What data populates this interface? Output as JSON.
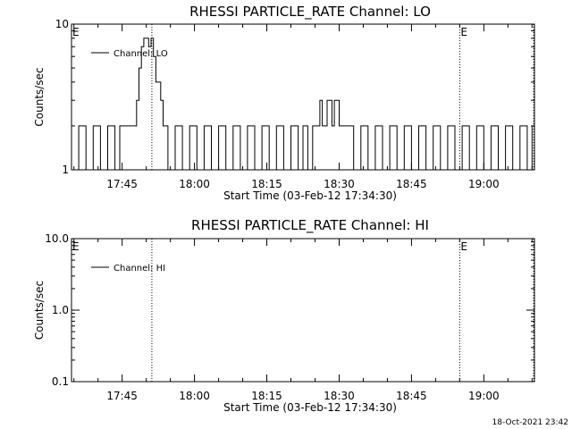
{
  "footer": {
    "timestamp": "18-Oct-2021 23:42"
  },
  "chart_data": [
    {
      "type": "line",
      "title": "RHESSI PARTICLE_RATE Channel: LO",
      "xlabel": "Start Time (03-Feb-12 17:34:30)",
      "ylabel": "Counts/sec",
      "yscale": "log",
      "ylim": [
        1,
        10
      ],
      "y_tick_labels": [
        "1",
        "10"
      ],
      "x_range": [
        "17:34:30",
        "19:10:30"
      ],
      "x_tick_labels": [
        "17:45",
        "18:00",
        "18:15",
        "18:30",
        "18:45",
        "19:00"
      ],
      "legend": "top-left",
      "grid": false,
      "markers": [
        {
          "time": "17:51:10",
          "label": ""
        },
        {
          "time": "18:55:00",
          "label": "E"
        },
        {
          "time": "19:10:20",
          "label": ""
        }
      ],
      "edge_label": "E",
      "series": [
        {
          "name": "Channel: LO",
          "x": [
            "17:34:30",
            "17:36:00",
            "17:37:30",
            "17:39:00",
            "17:40:30",
            "17:42:00",
            "17:43:30",
            "17:44:30",
            "17:45:30",
            "17:46:00",
            "17:47:00",
            "17:48:00",
            "17:48:30",
            "17:49:00",
            "17:49:30",
            "17:50:00",
            "17:50:30",
            "17:51:00",
            "17:51:30",
            "17:52:00",
            "17:52:30",
            "17:53:00",
            "17:53:30",
            "17:54:30",
            "17:56:00",
            "17:57:30",
            "17:59:00",
            "18:00:30",
            "18:02:00",
            "18:03:30",
            "18:05:00",
            "18:06:30",
            "18:08:00",
            "18:09:30",
            "18:11:00",
            "18:12:30",
            "18:14:00",
            "18:15:30",
            "18:17:00",
            "18:18:30",
            "18:20:00",
            "18:21:30",
            "18:22:30",
            "18:23:30",
            "18:24:30",
            "18:25:30",
            "18:26:00",
            "18:26:30",
            "18:27:00",
            "18:27:30",
            "18:28:00",
            "18:28:30",
            "18:29:00",
            "18:30:00",
            "18:31:30",
            "18:33:00",
            "18:34:30",
            "18:36:00",
            "18:37:30",
            "18:39:00",
            "18:40:30",
            "18:42:00",
            "18:43:30",
            "18:45:00",
            "18:46:30",
            "18:48:00",
            "18:49:30",
            "18:51:00",
            "18:52:30",
            "18:54:00",
            "18:55:30",
            "18:57:00",
            "18:58:30",
            "19:00:00",
            "19:01:30",
            "19:03:00",
            "19:04:30",
            "19:06:00",
            "19:07:30",
            "19:09:00",
            "19:10:00"
          ],
          "y": [
            1,
            2,
            1,
            2,
            1,
            2,
            1,
            2,
            2,
            2,
            2,
            3,
            5,
            7,
            8,
            8,
            7,
            8,
            6,
            4,
            4,
            3,
            2,
            1,
            2,
            1,
            2,
            1,
            2,
            1,
            2,
            1,
            2,
            1,
            2,
            1,
            2,
            1,
            2,
            1,
            2,
            1,
            2,
            1,
            2,
            2,
            3,
            2,
            2,
            3,
            3,
            2,
            3,
            2,
            2,
            1,
            2,
            1,
            2,
            1,
            2,
            1,
            2,
            1,
            2,
            1,
            2,
            1,
            2,
            1,
            2,
            1,
            2,
            1,
            2,
            1,
            2,
            1,
            2,
            1,
            2
          ]
        }
      ]
    },
    {
      "type": "line",
      "title": "RHESSI PARTICLE_RATE Channel: HI",
      "xlabel": "Start Time (03-Feb-12 17:34:30)",
      "ylabel": "Counts/sec",
      "yscale": "log",
      "ylim": [
        0.1,
        10.0
      ],
      "y_tick_labels": [
        "0.1",
        "1.0",
        "10.0"
      ],
      "x_range": [
        "17:34:30",
        "19:10:30"
      ],
      "x_tick_labels": [
        "17:45",
        "18:00",
        "18:15",
        "18:30",
        "18:45",
        "19:00"
      ],
      "legend": "top-left",
      "grid": false,
      "markers": [
        {
          "time": "17:51:10",
          "label": ""
        },
        {
          "time": "18:55:00",
          "label": "E"
        },
        {
          "time": "19:10:20",
          "label": ""
        }
      ],
      "edge_label": "E",
      "series": [
        {
          "name": "Channel: HI",
          "x": [],
          "y": []
        }
      ]
    }
  ]
}
